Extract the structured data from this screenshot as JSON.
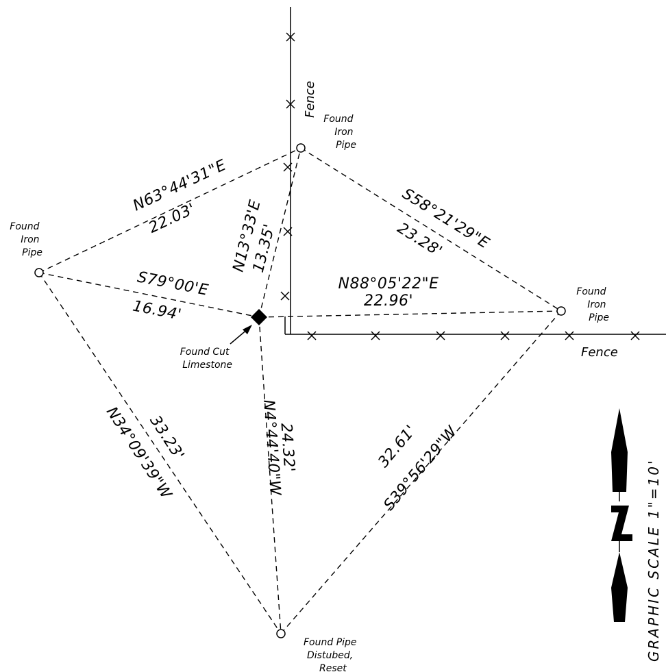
{
  "markers": {
    "nw_pipe": [
      "Found",
      "Iron",
      "Pipe"
    ],
    "w_pipe": [
      "Found",
      "Iron",
      "Pipe"
    ],
    "e_pipe": [
      "Found",
      "Iron",
      "Pipe"
    ],
    "stone": [
      "Found Cut",
      "Limestone"
    ],
    "s_pipe": [
      "Found Pipe",
      "Distubed,",
      "Reset"
    ]
  },
  "fence_labels": {
    "north": "Fence",
    "east": "Fence"
  },
  "courses": {
    "w_to_n": {
      "bearing": "N63°44'31\"E",
      "distance": "22.03'"
    },
    "stone_to_n": {
      "bearing": "N13°33'E",
      "distance": "13.35'"
    },
    "n_to_e": {
      "bearing": "S58°21'29\"E",
      "distance": "23.28'"
    },
    "w_to_stone": {
      "bearing": "S79°00'E",
      "distance": "16.94'"
    },
    "stone_to_e": {
      "bearing": "N88°05'22\"E",
      "distance": "22.96'"
    },
    "s_to_w": {
      "bearing": "N34°09'39\"W",
      "distance": "33.23'"
    },
    "s_to_stone": {
      "bearing": "N4°44'40\"W",
      "distance": "24.32'"
    },
    "e_to_s": {
      "bearing": "S39°56'29\"W",
      "distance": "32.61'"
    }
  },
  "scale_label": "GRAPHIC SCALE 1\"=10'",
  "north_arrow_letter": "N"
}
